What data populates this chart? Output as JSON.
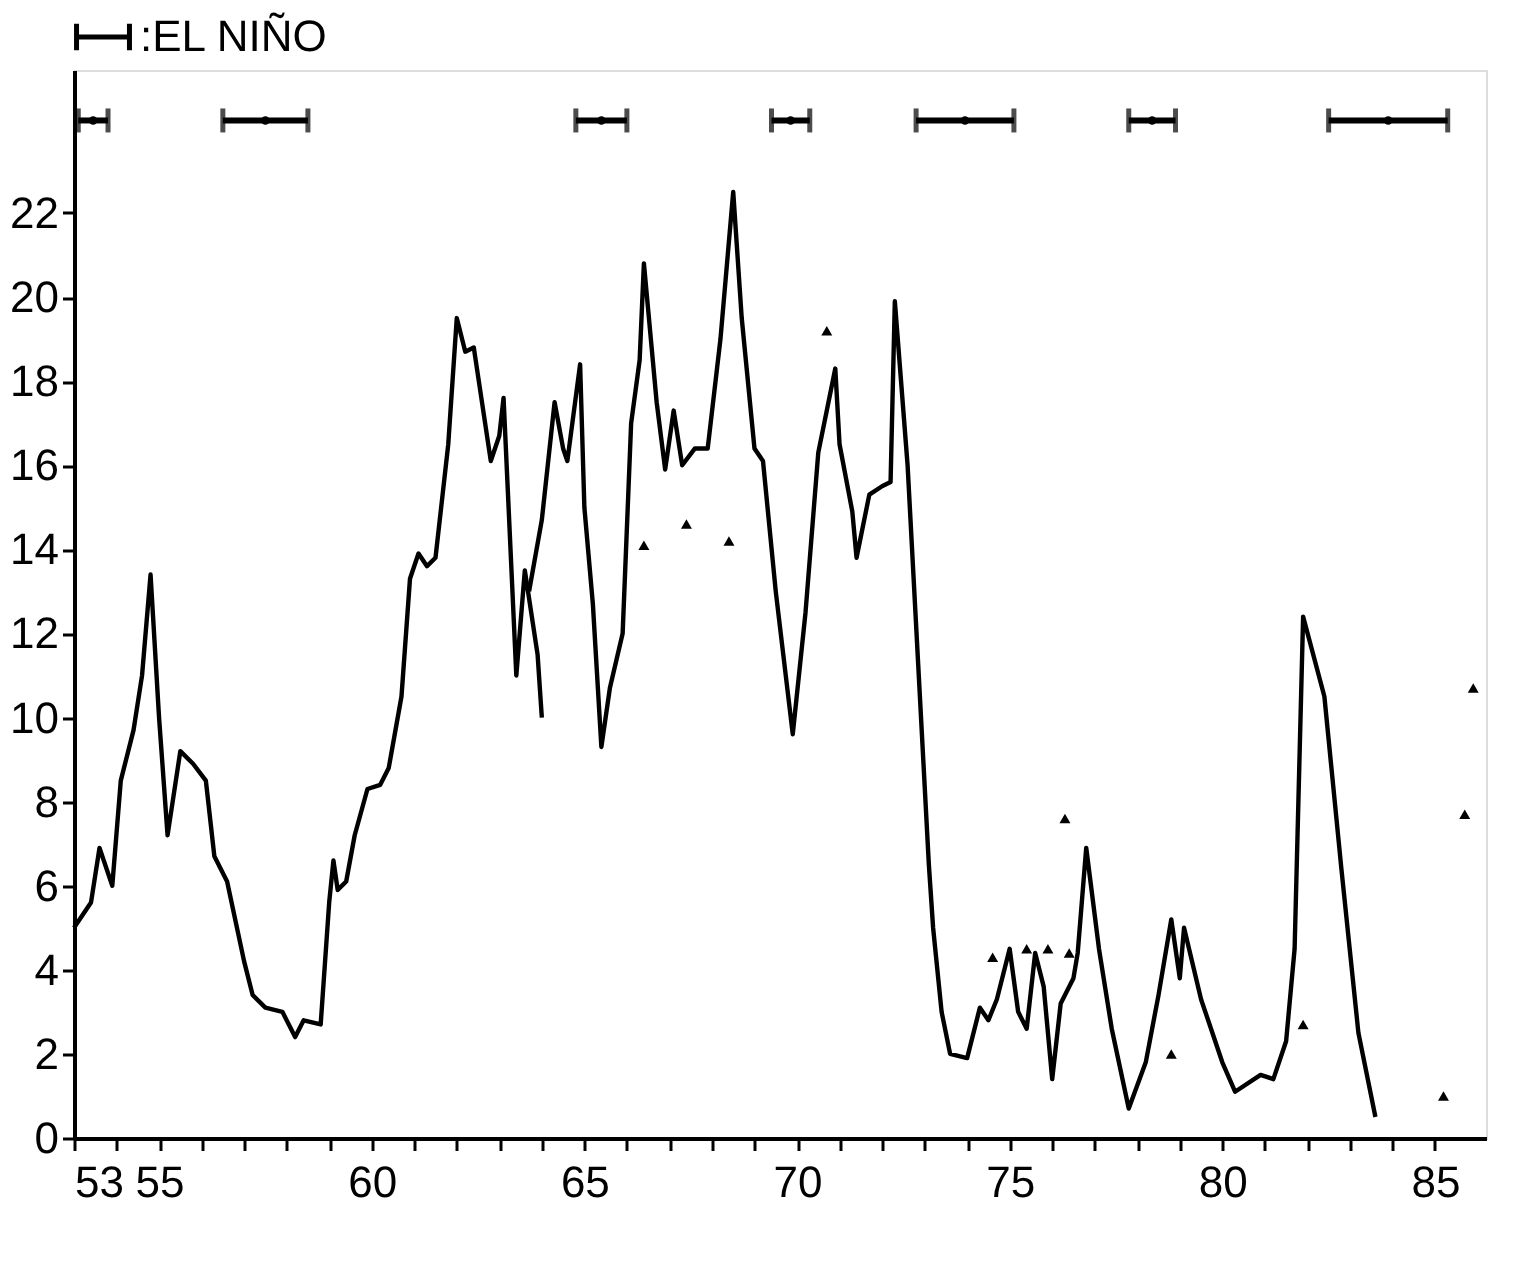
{
  "chart_data": {
    "type": "line",
    "xlim": [
      53,
      86.2
    ],
    "ylim": [
      0,
      25.4
    ],
    "xticks": [
      53,
      {
        "value": 54,
        "label": null
      },
      55,
      {
        "value": 56,
        "label": null
      },
      {
        "value": 57,
        "label": null
      },
      {
        "value": 58,
        "label": null
      },
      {
        "value": 59,
        "label": null
      },
      60,
      {
        "value": 61,
        "label": null
      },
      {
        "value": 62,
        "label": null
      },
      {
        "value": 63,
        "label": null
      },
      {
        "value": 64,
        "label": null
      },
      65,
      {
        "value": 66,
        "label": null
      },
      {
        "value": 67,
        "label": null
      },
      {
        "value": 68,
        "label": null
      },
      {
        "value": 69,
        "label": null
      },
      70,
      {
        "value": 71,
        "label": null
      },
      {
        "value": 72,
        "label": null
      },
      {
        "value": 73,
        "label": null
      },
      {
        "value": 74,
        "label": null
      },
      75,
      {
        "value": 76,
        "label": null
      },
      {
        "value": 77,
        "label": null
      },
      {
        "value": 78,
        "label": null
      },
      {
        "value": 79,
        "label": null
      },
      80,
      {
        "value": 81,
        "label": null
      },
      {
        "value": 82,
        "label": null
      },
      {
        "value": 83,
        "label": null
      },
      {
        "value": 84,
        "label": null
      },
      85
    ],
    "yticks": [
      0,
      2,
      4,
      6,
      8,
      10,
      12,
      14,
      16,
      18,
      20,
      22
    ],
    "grid": false,
    "legend": "top",
    "series": [
      {
        "color": "#000000",
        "marker": "none",
        "line_style": "solid",
        "x": [
          53.0,
          53.4,
          53.6,
          53.9,
          54.1,
          54.4,
          54.6,
          54.8,
          55.0,
          55.2,
          55.5,
          55.8,
          56.1,
          56.3,
          56.6,
          57.0,
          57.2,
          57.5,
          57.9,
          58.2,
          58.4,
          58.8,
          59.0,
          59.1,
          59.2,
          59.4,
          59.6,
          59.9,
          60.2,
          60.4,
          60.7,
          60.9,
          61.1,
          61.3,
          61.5,
          61.8,
          62.0,
          62.2,
          62.4,
          62.8,
          63.0,
          63.1,
          63.4,
          63.6,
          63.9,
          64.0
        ],
        "values": [
          5.0,
          5.6,
          6.9,
          6.0,
          8.5,
          9.7,
          11.0,
          13.4,
          10.0,
          7.2,
          9.2,
          8.9,
          8.5,
          6.7,
          6.1,
          4.2,
          3.4,
          3.1,
          3.0,
          2.4,
          2.8,
          2.7,
          5.6,
          6.6,
          5.9,
          6.1,
          7.2,
          8.3,
          8.4,
          8.8,
          10.5,
          13.3,
          13.9,
          13.6,
          13.8,
          16.5,
          19.5,
          18.7,
          18.8,
          16.1,
          16.7,
          17.6,
          11.0,
          13.5,
          11.5,
          10.0
        ]
      },
      {
        "color": "#000000",
        "marker": "none",
        "line_style": "solid",
        "x": [
          63.7,
          64.0,
          64.3,
          64.5,
          64.6,
          64.9,
          65.0,
          65.2,
          65.4,
          65.6,
          65.9,
          66.1,
          66.3,
          66.4,
          66.7,
          66.9,
          67.1,
          67.3,
          67.6,
          67.9,
          68.2,
          68.5,
          68.7,
          69.0,
          69.2,
          69.5,
          69.9,
          70.2,
          70.5,
          70.9,
          71.0,
          71.3,
          71.4,
          71.7,
          72.0,
          72.2,
          72.3,
          72.6,
          73.1,
          73.2,
          73.4,
          73.6,
          74.0,
          74.3,
          74.5,
          74.7,
          75.0,
          75.2,
          75.4,
          75.6,
          75.8,
          76.0,
          76.2,
          76.5,
          76.6,
          76.8,
          77.1,
          77.4,
          77.8,
          78.2,
          78.5,
          78.8,
          79.0,
          79.1,
          79.5,
          80.0,
          80.3,
          80.9,
          81.2,
          81.5,
          81.7,
          81.9,
          82.4,
          82.8,
          83.2,
          83.6
        ],
        "values": [
          13.0,
          14.7,
          17.5,
          16.4,
          16.1,
          18.4,
          15.0,
          12.7,
          9.3,
          10.7,
          12.0,
          17.0,
          18.5,
          20.8,
          17.5,
          15.9,
          17.3,
          16.0,
          16.4,
          16.4,
          19.0,
          22.5,
          19.5,
          16.4,
          16.1,
          13.0,
          9.6,
          12.5,
          16.3,
          18.3,
          16.5,
          14.9,
          13.8,
          15.3,
          15.5,
          15.6,
          19.9,
          16.0,
          6.5,
          5.0,
          3.0,
          2.0,
          1.9,
          3.1,
          2.8,
          3.3,
          4.5,
          3.0,
          2.6,
          4.4,
          3.6,
          1.4,
          3.2,
          3.8,
          4.4,
          6.9,
          4.5,
          2.6,
          0.7,
          1.8,
          3.4,
          5.2,
          3.8,
          5.0,
          3.3,
          1.8,
          1.1,
          1.5,
          1.4,
          2.3,
          4.5,
          12.4,
          10.5,
          6.4,
          2.5,
          0.5
        ]
      },
      {
        "type": "scatter",
        "color": "#000000",
        "marker": "triangle",
        "x": [
          66.4,
          67.4,
          68.4,
          70.7,
          74.6,
          75.4,
          75.9,
          76.3,
          76.4,
          78.8,
          81.9,
          85.2,
          85.7,
          85.9
        ],
        "values": [
          14.1,
          14.6,
          14.2,
          19.2,
          4.3,
          4.5,
          4.5,
          7.6,
          4.4,
          2.0,
          2.7,
          1.0,
          7.7,
          10.7
        ]
      },
      {
        "type": "scatter",
        "name": ":EL NIÑO",
        "color": "#000000",
        "marker": "circle",
        "x": [
          53.45,
          57.5,
          65.4,
          69.85,
          73.95,
          78.35,
          83.9
        ],
        "values": [
          24.2,
          24.2,
          24.2,
          24.2,
          24.2,
          24.2,
          24.2
        ],
        "xerrors": [
          [
            53.1,
            53.8
          ],
          [
            56.5,
            58.5
          ],
          [
            64.8,
            66.0
          ],
          [
            69.4,
            70.3
          ],
          [
            72.8,
            75.1
          ],
          [
            77.8,
            78.9
          ],
          [
            82.5,
            85.3
          ]
        ]
      }
    ]
  }
}
